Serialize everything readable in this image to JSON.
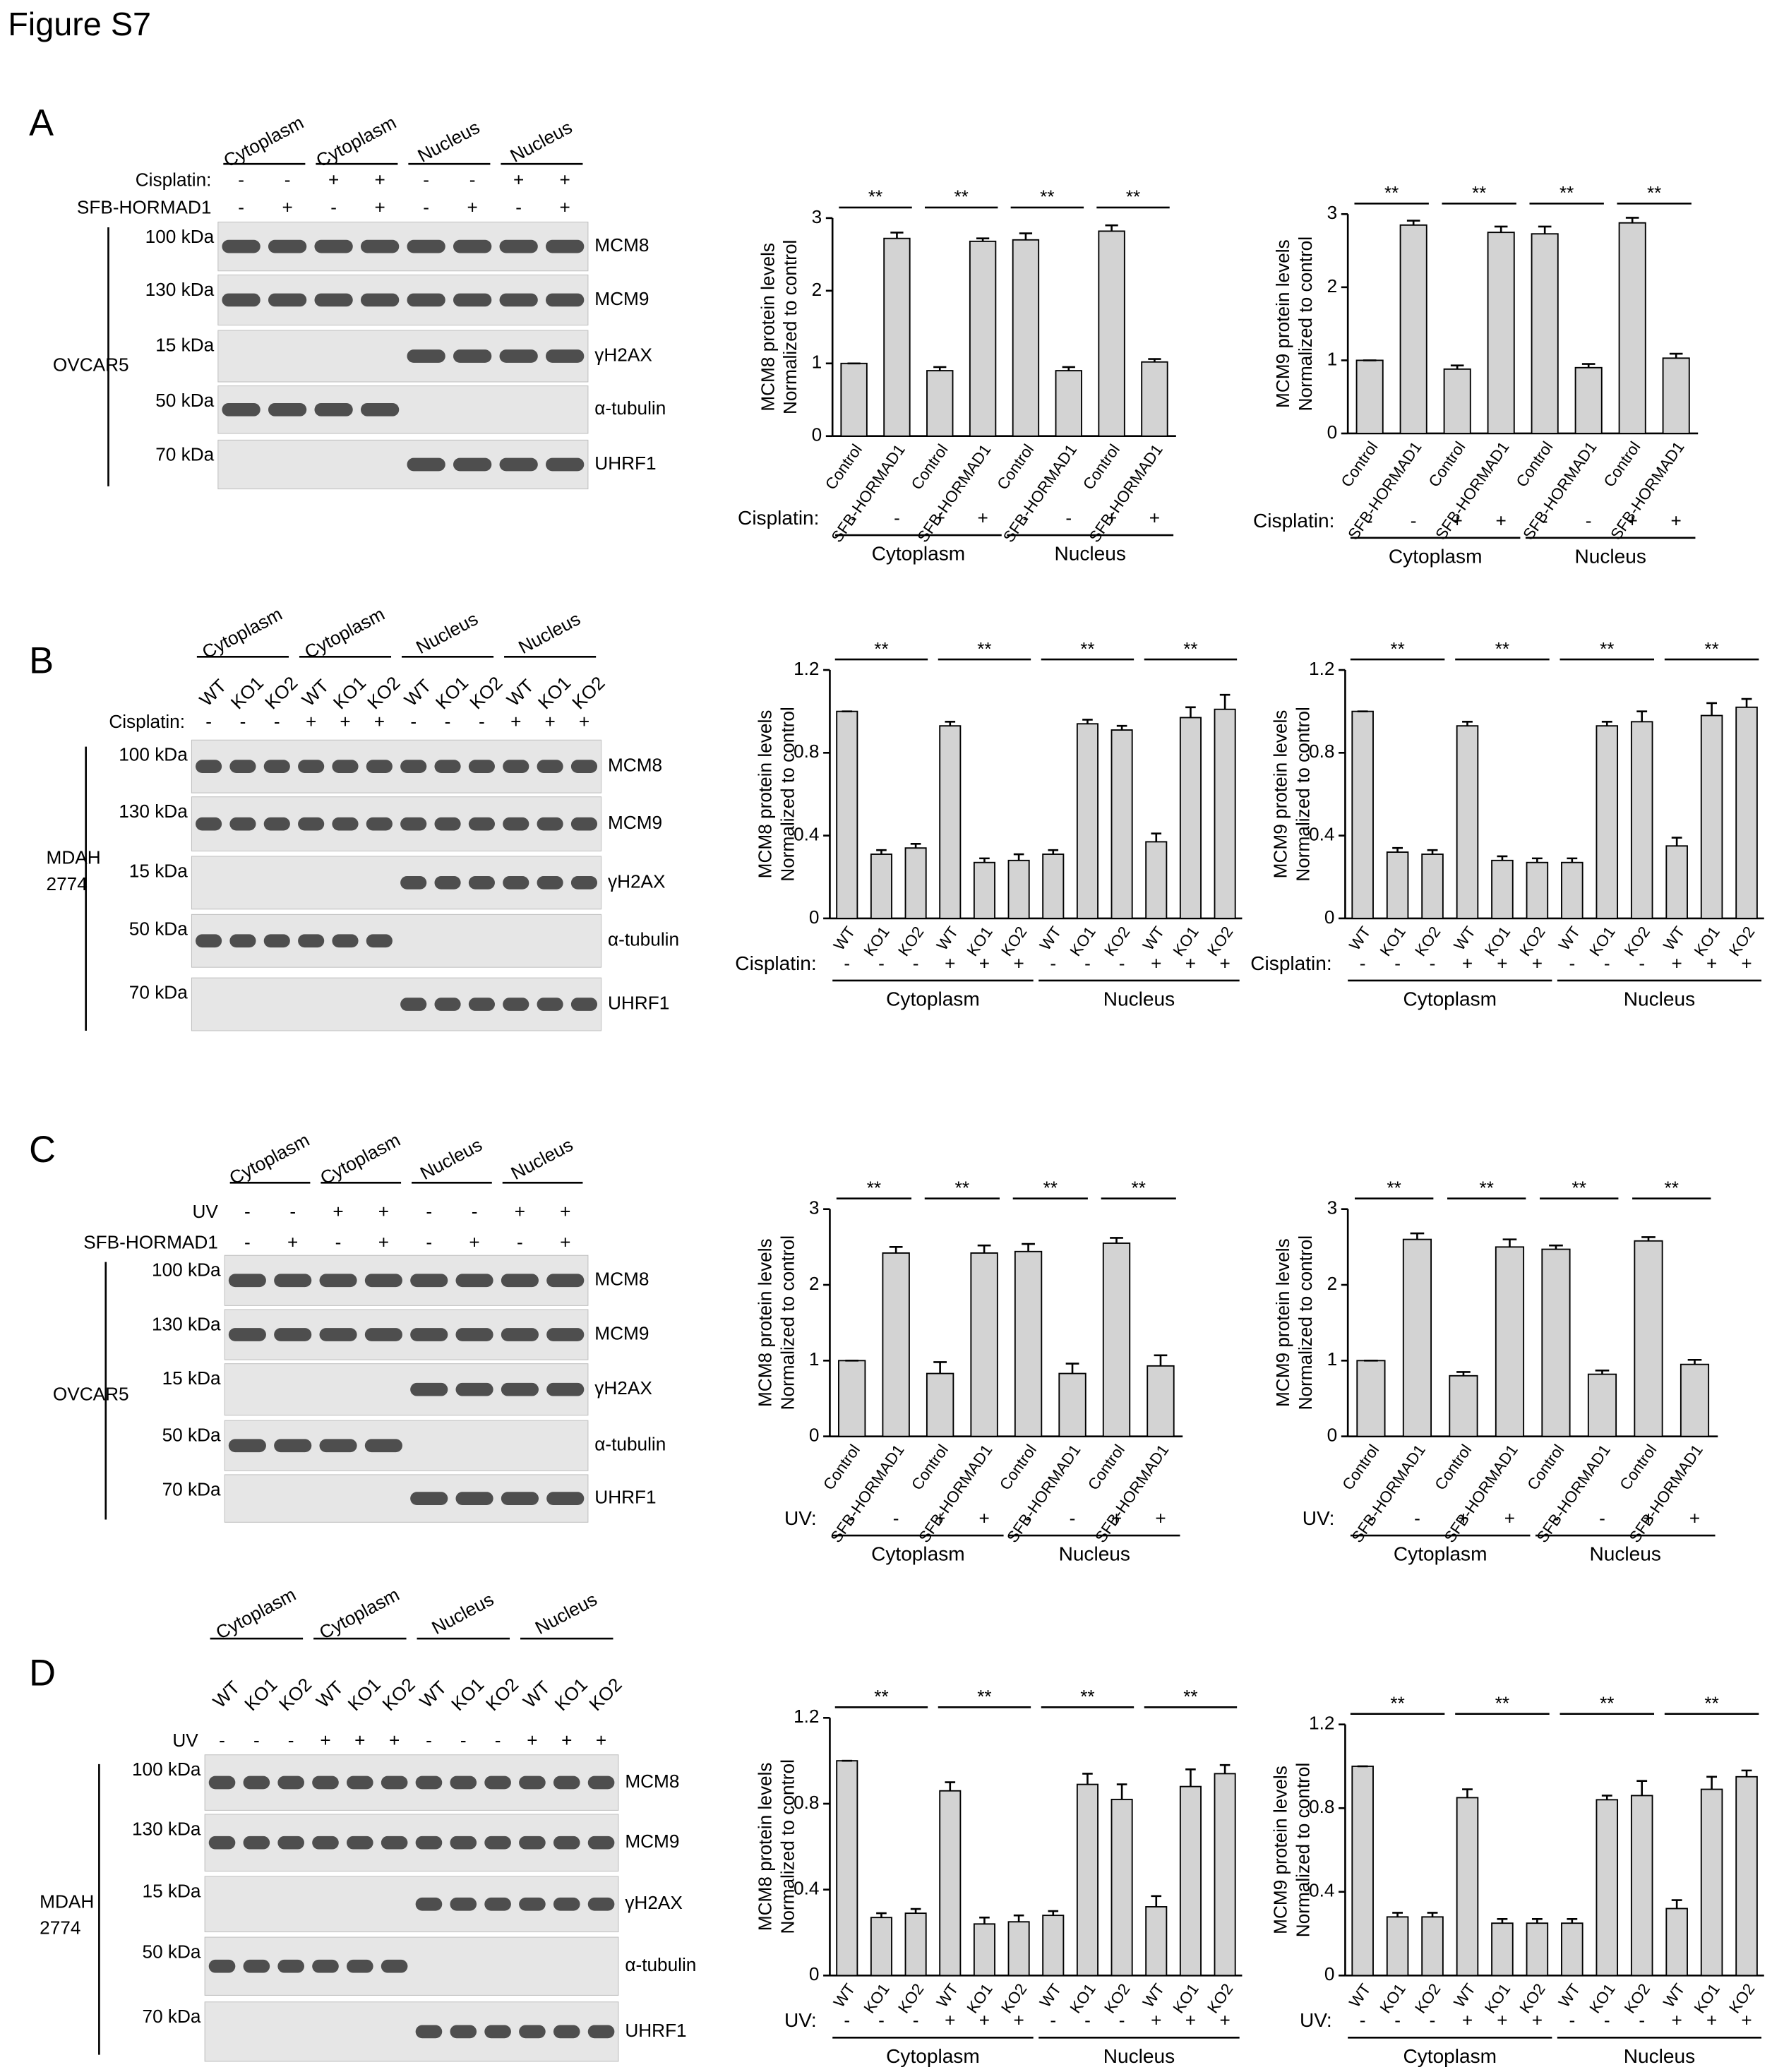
{
  "figure_title": "Figure S7",
  "panels": [
    {
      "letter": "A",
      "cell_line": [
        "OVCAR5"
      ],
      "fractions": [
        "Cytoplasm",
        "Cytoplasm",
        "Nucleus",
        "Nucleus"
      ],
      "treatments": [
        {
          "label": "Cisplatin:",
          "signs": [
            "-",
            "-",
            "+",
            "+",
            "-",
            "-",
            "+",
            "+"
          ]
        },
        {
          "label": "SFB-HORMAD1",
          "signs": [
            "-",
            "+",
            "-",
            "+",
            "-",
            "+",
            "-",
            "+"
          ]
        }
      ],
      "markers": [
        "100 kDa",
        "130 kDa",
        "15 kDa",
        "50 kDa",
        "70 kDa"
      ],
      "proteins": [
        "MCM8",
        "MCM9",
        "γH2AX",
        "α-tubulin",
        "UHRF1"
      ]
    },
    {
      "letter": "B",
      "cell_line": [
        "MDAH",
        "2774"
      ],
      "fractions": [
        "Cytoplasm",
        "Cytoplasm",
        "Nucleus",
        "Nucleus"
      ],
      "lanes": [
        "WT",
        "KO1",
        "KO2",
        "WT",
        "KO1",
        "KO2",
        "WT",
        "KO1",
        "KO2",
        "WT",
        "KO1",
        "KO2"
      ],
      "treatments": [
        {
          "label": "Cisplatin:",
          "signs": [
            "-",
            "-",
            "-",
            "+",
            "+",
            "+",
            "-",
            "-",
            "-",
            "+",
            "+",
            "+"
          ]
        }
      ],
      "markers": [
        "100 kDa",
        "130 kDa",
        "15 kDa",
        "50 kDa",
        "70 kDa"
      ],
      "proteins": [
        "MCM8",
        "MCM9",
        "γH2AX",
        "α-tubulin",
        "UHRF1"
      ]
    },
    {
      "letter": "C",
      "cell_line": [
        "OVCAR5"
      ],
      "fractions": [
        "Cytoplasm",
        "Cytoplasm",
        "Nucleus",
        "Nucleus"
      ],
      "treatments": [
        {
          "label": "UV",
          "signs": [
            "-",
            "-",
            "+",
            "+",
            "-",
            "-",
            "+",
            "+"
          ]
        },
        {
          "label": "SFB-HORMAD1",
          "signs": [
            "-",
            "+",
            "-",
            "+",
            "-",
            "+",
            "-",
            "+"
          ]
        }
      ],
      "markers": [
        "100 kDa",
        "130 kDa",
        "15 kDa",
        "50 kDa",
        "70 kDa"
      ],
      "proteins": [
        "MCM8",
        "MCM9",
        "γH2AX",
        "α-tubulin",
        "UHRF1"
      ]
    },
    {
      "letter": "D",
      "cell_line": [
        "MDAH",
        "2774"
      ],
      "fractions": [
        "Cytoplasm",
        "Cytoplasm",
        "Nucleus",
        "Nucleus"
      ],
      "lanes": [
        "WT",
        "KO1",
        "KO2",
        "WT",
        "KO1",
        "KO2",
        "WT",
        "KO1",
        "KO2",
        "WT",
        "KO1",
        "KO2"
      ],
      "treatments": [
        {
          "label": "UV",
          "signs": [
            "-",
            "-",
            "-",
            "+",
            "+",
            "+",
            "-",
            "-",
            "-",
            "+",
            "+",
            "+"
          ]
        }
      ],
      "markers": [
        "100 kDa",
        "130 kDa",
        "15 kDa",
        "50 kDa",
        "70 kDa"
      ],
      "proteins": [
        "MCM8",
        "MCM9",
        "γH2AX",
        "α-tubulin",
        "UHRF1"
      ]
    }
  ],
  "chart_data": [
    {
      "type": "bar",
      "ylabel": "MCM8 protein levels",
      "ylabel_sub": "Normalized to control",
      "categories": [
        "Control",
        "SFB-HORMAD1",
        "Control",
        "SFB-HORMAD1",
        "Control",
        "SFB-HORMAD1",
        "Control",
        "SFB-HORMAD1"
      ],
      "values": [
        1,
        2.72,
        0.9,
        2.68,
        2.7,
        0.9,
        2.82,
        1.02
      ],
      "errors": [
        0,
        0.08,
        0.05,
        0.04,
        0.09,
        0.05,
        0.08,
        0.04
      ],
      "ylim": [
        0,
        3
      ],
      "yticks": [
        0,
        1,
        2,
        3
      ],
      "color": "#d3d3d3",
      "treatment": {
        "label": "Cisplatin:",
        "signs": [
          "-",
          "-",
          "+",
          "+",
          "-",
          "-",
          "+",
          "+"
        ]
      },
      "groups": [
        "Cytoplasm",
        "Nucleus"
      ],
      "significance": [
        "**",
        "**",
        "**",
        "**"
      ]
    },
    {
      "type": "bar",
      "ylabel": "MCM9 protein levels",
      "ylabel_sub": "Normalized to control",
      "categories": [
        "Control",
        "SFB-HORMAD1",
        "Control",
        "SFB-HORMAD1",
        "Control",
        "SFB-HORMAD1",
        "Control",
        "SFB-HORMAD1"
      ],
      "values": [
        1,
        2.85,
        0.88,
        2.75,
        2.73,
        0.9,
        2.88,
        1.03
      ],
      "errors": [
        0,
        0.06,
        0.05,
        0.08,
        0.1,
        0.05,
        0.07,
        0.06
      ],
      "ylim": [
        0,
        3
      ],
      "yticks": [
        0,
        1,
        2,
        3
      ],
      "color": "#d3d3d3",
      "treatment": {
        "label": "Cisplatin:",
        "signs": [
          "-",
          "-",
          "+",
          "+",
          "-",
          "-",
          "+",
          "+"
        ]
      },
      "groups": [
        "Cytoplasm",
        "Nucleus"
      ],
      "significance": [
        "**",
        "**",
        "**",
        "**"
      ]
    },
    {
      "type": "bar",
      "ylabel": "MCM8 protein levels",
      "ylabel_sub": "Normalized to control",
      "categories": [
        "WT",
        "KO1",
        "KO2",
        "WT",
        "KO1",
        "KO2",
        "WT",
        "KO1",
        "KO2",
        "WT",
        "KO1",
        "KO2"
      ],
      "values": [
        1.0,
        0.31,
        0.34,
        0.93,
        0.27,
        0.28,
        0.31,
        0.94,
        0.91,
        0.37,
        0.97,
        1.01
      ],
      "errors": [
        0,
        0.02,
        0.02,
        0.02,
        0.02,
        0.03,
        0.02,
        0.02,
        0.02,
        0.04,
        0.05,
        0.07
      ],
      "ylim": [
        0,
        1.2
      ],
      "yticks": [
        0,
        0.4,
        0.8,
        1.2
      ],
      "color": "#d3d3d3",
      "treatment": {
        "label": "Cisplatin:",
        "signs": [
          "-",
          "-",
          "-",
          "+",
          "+",
          "+",
          "-",
          "-",
          "-",
          "+",
          "+",
          "+"
        ]
      },
      "groups": [
        "Cytoplasm",
        "Nucleus"
      ],
      "significance": [
        "**",
        "**",
        "**",
        "**"
      ]
    },
    {
      "type": "bar",
      "ylabel": "MCM9 protein levels",
      "ylabel_sub": "Normalized to control",
      "categories": [
        "WT",
        "KO1",
        "KO2",
        "WT",
        "KO1",
        "KO2",
        "WT",
        "KO1",
        "KO2",
        "WT",
        "KO1",
        "KO2"
      ],
      "values": [
        1.0,
        0.32,
        0.31,
        0.93,
        0.28,
        0.27,
        0.27,
        0.93,
        0.95,
        0.35,
        0.98,
        1.02
      ],
      "errors": [
        0,
        0.02,
        0.02,
        0.02,
        0.02,
        0.02,
        0.02,
        0.02,
        0.05,
        0.04,
        0.06,
        0.04
      ],
      "ylim": [
        0,
        1.2
      ],
      "yticks": [
        0,
        0.4,
        0.8,
        1.2
      ],
      "color": "#d3d3d3",
      "treatment": {
        "label": "Cisplatin:",
        "signs": [
          "-",
          "-",
          "-",
          "+",
          "+",
          "+",
          "-",
          "-",
          "-",
          "+",
          "+",
          "+"
        ]
      },
      "groups": [
        "Cytoplasm",
        "Nucleus"
      ],
      "significance": [
        "**",
        "**",
        "**",
        "**"
      ]
    },
    {
      "type": "bar",
      "ylabel": "MCM8 protein levels",
      "ylabel_sub": "Normalized to control",
      "categories": [
        "Control",
        "SFB-HORMAD1",
        "Control",
        "SFB-HORMAD1",
        "Control",
        "SFB-HORMAD1",
        "Control",
        "SFB-HORMAD1"
      ],
      "values": [
        1,
        2.42,
        0.83,
        2.42,
        2.44,
        0.83,
        2.55,
        0.93
      ],
      "errors": [
        0,
        0.08,
        0.15,
        0.1,
        0.1,
        0.13,
        0.07,
        0.14
      ],
      "ylim": [
        0,
        3
      ],
      "yticks": [
        0,
        1,
        2,
        3
      ],
      "color": "#d3d3d3",
      "treatment": {
        "label": "UV:",
        "signs": [
          "-",
          "-",
          "+",
          "+",
          "-",
          "-",
          "+",
          "+"
        ]
      },
      "groups": [
        "Cytoplasm",
        "Nucleus"
      ],
      "significance": [
        "**",
        "**",
        "**",
        "**"
      ]
    },
    {
      "type": "bar",
      "ylabel": "MCM9 protein levels",
      "ylabel_sub": "Normalized to control",
      "categories": [
        "Control",
        "SFB-HORMAD1",
        "Control",
        "SFB-HORMAD1",
        "Control",
        "SFB-HORMAD1",
        "Control",
        "SFB-HORMAD1"
      ],
      "values": [
        1,
        2.6,
        0.8,
        2.5,
        2.47,
        0.82,
        2.58,
        0.95
      ],
      "errors": [
        0,
        0.08,
        0.05,
        0.1,
        0.05,
        0.05,
        0.05,
        0.06
      ],
      "ylim": [
        0,
        3
      ],
      "yticks": [
        0,
        1,
        2,
        3
      ],
      "color": "#d3d3d3",
      "treatment": {
        "label": "UV:",
        "signs": [
          "-",
          "-",
          "+",
          "+",
          "-",
          "-",
          "+",
          "+"
        ]
      },
      "groups": [
        "Cytoplasm",
        "Nucleus"
      ],
      "significance": [
        "**",
        "**",
        "**",
        "**"
      ]
    },
    {
      "type": "bar",
      "ylabel": "MCM8 protein levels",
      "ylabel_sub": "Normalized to control",
      "categories": [
        "WT",
        "KO1",
        "KO2",
        "WT",
        "KO1",
        "KO2",
        "WT",
        "KO1",
        "KO2",
        "WT",
        "KO1",
        "KO2"
      ],
      "values": [
        1.0,
        0.27,
        0.29,
        0.86,
        0.24,
        0.25,
        0.28,
        0.89,
        0.82,
        0.32,
        0.88,
        0.94
      ],
      "errors": [
        0,
        0.02,
        0.02,
        0.04,
        0.03,
        0.03,
        0.02,
        0.05,
        0.07,
        0.05,
        0.08,
        0.04
      ],
      "ylim": [
        0,
        1.2
      ],
      "yticks": [
        0,
        0.4,
        0.8,
        1.2
      ],
      "color": "#d3d3d3",
      "treatment": {
        "label": "UV:",
        "signs": [
          "-",
          "-",
          "-",
          "+",
          "+",
          "+",
          "-",
          "-",
          "-",
          "+",
          "+",
          "+"
        ]
      },
      "groups": [
        "Cytoplasm",
        "Nucleus"
      ],
      "significance": [
        "**",
        "**",
        "**",
        "**"
      ]
    },
    {
      "type": "bar",
      "ylabel": "MCM9 protein levels",
      "ylabel_sub": "Normalized to control",
      "categories": [
        "WT",
        "KO1",
        "KO2",
        "WT",
        "KO1",
        "KO2",
        "WT",
        "KO1",
        "KO2",
        "WT",
        "KO1",
        "KO2"
      ],
      "values": [
        1.0,
        0.28,
        0.28,
        0.85,
        0.25,
        0.25,
        0.25,
        0.84,
        0.86,
        0.32,
        0.89,
        0.95
      ],
      "errors": [
        0,
        0.02,
        0.02,
        0.04,
        0.02,
        0.02,
        0.02,
        0.02,
        0.07,
        0.04,
        0.06,
        0.03
      ],
      "ylim": [
        0,
        1.2
      ],
      "yticks": [
        0,
        0.4,
        0.8,
        1.2
      ],
      "color": "#d3d3d3",
      "treatment": {
        "label": "UV:",
        "signs": [
          "-",
          "-",
          "-",
          "+",
          "+",
          "+",
          "-",
          "-",
          "-",
          "+",
          "+",
          "+"
        ]
      },
      "groups": [
        "Cytoplasm",
        "Nucleus"
      ],
      "significance": [
        "**",
        "**",
        "**",
        "**"
      ]
    }
  ]
}
